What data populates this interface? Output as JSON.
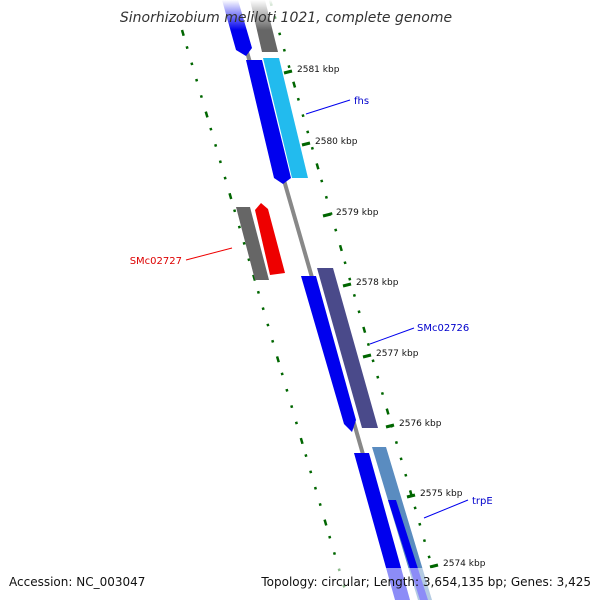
{
  "title": "Sinorhizobium meliloti 1021, complete genome",
  "footer": {
    "accession": "Accession: NC_003047",
    "summary": "Topology: circular; Length: 3,654,135 bp; Genes: 3,425"
  },
  "ticks": [
    {
      "label": "2581 kbp"
    },
    {
      "label": "2580 kbp"
    },
    {
      "label": "2579 kbp"
    },
    {
      "label": "2578 kbp"
    },
    {
      "label": "2577 kbp"
    },
    {
      "label": "2576 kbp"
    },
    {
      "label": "2575 kbp"
    },
    {
      "label": "2574 kbp"
    }
  ],
  "gene_labels": [
    {
      "text": "fhs",
      "color": "#0000cc"
    },
    {
      "text": "SMc02727",
      "color": "#dd0000"
    },
    {
      "text": "SMc02726",
      "color": "#0000cc"
    },
    {
      "text": "trpE",
      "color": "#0000cc"
    }
  ],
  "colors": {
    "backbone": "#888888",
    "cds": "#0000ee",
    "gene_blue": "#22bbee",
    "gene_red": "#ee0000",
    "gene_gray": "#666666",
    "gene_purple": "#4a4a8a",
    "gene_steel": "#5a8cc0",
    "gc_track": "#006600"
  }
}
